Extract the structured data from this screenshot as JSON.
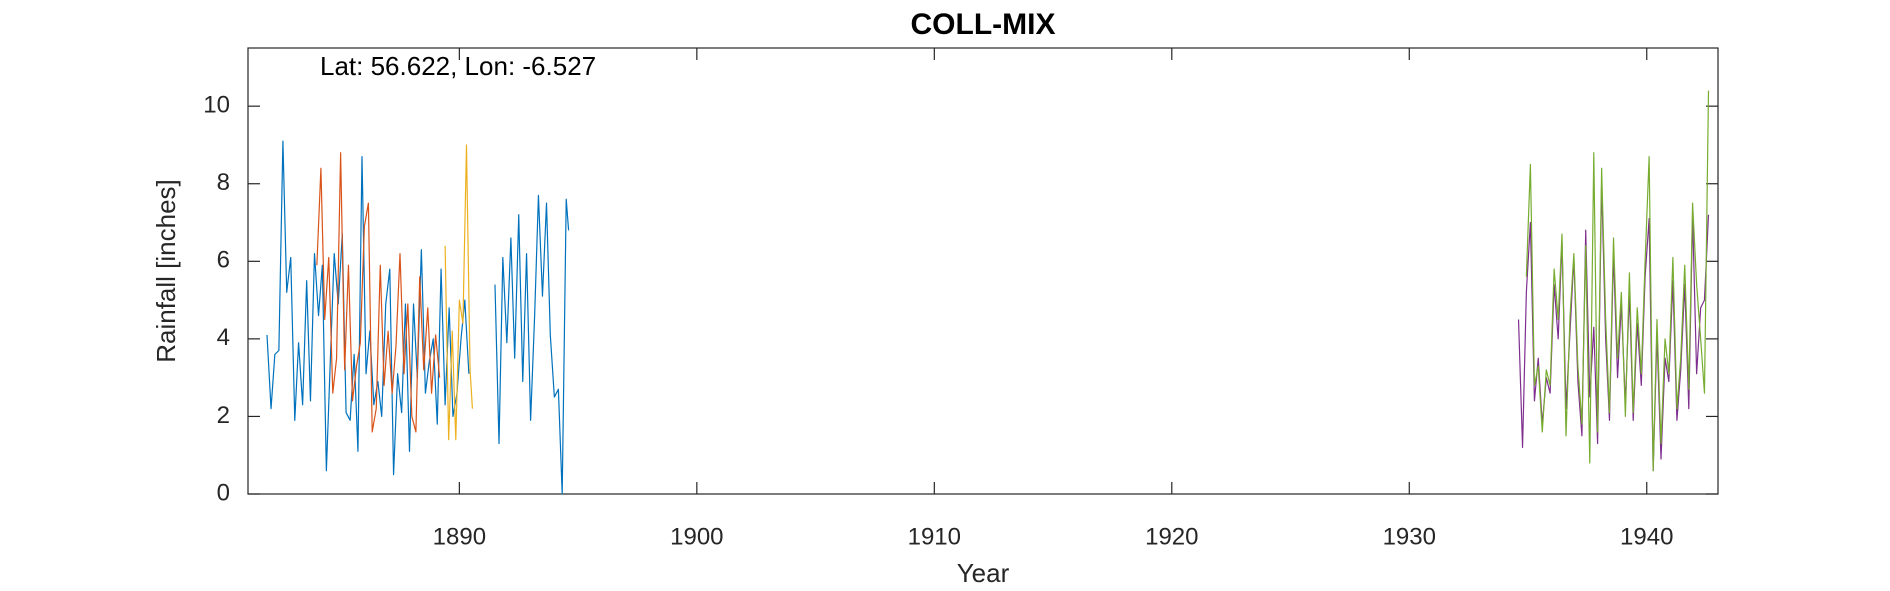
{
  "chart_data": {
    "type": "line",
    "title": "COLL-MIX",
    "annotation": "Lat: 56.622, Lon: -6.527",
    "xlabel": "Year",
    "ylabel": "Rainfall [inches]",
    "xlim": [
      1881.1,
      1943
    ],
    "xticks": [
      1890,
      1900,
      1910,
      1920,
      1930,
      1940
    ],
    "ylim": [
      0,
      11.5
    ],
    "yticks": [
      0,
      2,
      4,
      6,
      8,
      10
    ],
    "grid": false,
    "series": [
      {
        "color": "#0072bd",
        "x": [
          1881.9,
          1882.07,
          1882.23,
          1882.4,
          1882.57,
          1882.73,
          1882.9,
          1883.07,
          1883.23,
          1883.4,
          1883.57,
          1883.73,
          1883.9,
          1884.07,
          1884.23,
          1884.4,
          1884.57,
          1884.73,
          1884.9,
          1885.07,
          1885.23,
          1885.4,
          1885.57,
          1885.73,
          1885.9,
          1886.07,
          1886.23,
          1886.4,
          1886.57,
          1886.73,
          1886.9,
          1887.07,
          1887.23,
          1887.4,
          1887.57,
          1887.73,
          1887.9,
          1888.07,
          1888.23,
          1888.4,
          1888.57,
          1888.73,
          1888.9,
          1889.07,
          1889.23,
          1889.4,
          1889.57,
          1889.73,
          1889.9,
          1890.07,
          1890.23,
          1890.4,
          1891.0,
          1891.5,
          1891.67,
          1891.83,
          1892,
          1892.17,
          1892.33,
          1892.5,
          1892.67,
          1892.83,
          1893,
          1893.17,
          1893.33,
          1893.5,
          1893.67,
          1893.83,
          1894,
          1894.17,
          1894.33,
          1894.5,
          1894.6
        ],
        "values": [
          4.1,
          2.2,
          3.6,
          3.7,
          9.1,
          5.2,
          6.1,
          1.9,
          3.9,
          2.3,
          5.5,
          2.4,
          6.2,
          4.6,
          5.9,
          0.6,
          3.5,
          6.2,
          4.9,
          6.7,
          2.1,
          1.9,
          3.6,
          1.1,
          8.7,
          3.1,
          4.2,
          2.3,
          2.9,
          2.0,
          4.9,
          5.8,
          0.5,
          3.1,
          2.1,
          4.9,
          1.1,
          4.9,
          3.0,
          6.3,
          2.6,
          3.4,
          4.0,
          1.8,
          5.8,
          2.3,
          4.8,
          2.0,
          2.6,
          4.0,
          5.0,
          3.1,
          null,
          5.4,
          1.3,
          6.1,
          3.9,
          6.6,
          3.5,
          7.2,
          2.9,
          6.2,
          1.9,
          4.6,
          7.7,
          5.1,
          7.5,
          4.1,
          2.5,
          2.7,
          0.0,
          7.6,
          6.8
        ]
      },
      {
        "color": "#d95319",
        "x": [
          1884,
          1884.17,
          1884.33,
          1884.5,
          1884.67,
          1884.83,
          1885,
          1885.17,
          1885.33,
          1885.5,
          1885.67,
          1885.83,
          1886,
          1886.17,
          1886.33,
          1886.5,
          1886.67,
          1886.83,
          1887,
          1887.17,
          1887.33,
          1887.5,
          1887.67,
          1887.83,
          1888,
          1888.17,
          1888.33,
          1888.5,
          1888.67,
          1888.83,
          1889,
          1889.17
        ],
        "values": [
          5.9,
          8.4,
          4.5,
          6.1,
          2.6,
          3.5,
          8.8,
          3.2,
          5.9,
          2.4,
          3.3,
          3.9,
          6.9,
          7.5,
          1.6,
          2.2,
          5.9,
          2.8,
          4.2,
          2.6,
          3.8,
          6.2,
          3.1,
          4.9,
          2.0,
          1.6,
          5.6,
          3.2,
          4.8,
          2.6,
          4.1,
          3.0
        ]
      },
      {
        "color": "#edb120",
        "x": [
          1889.4,
          1889.55,
          1889.7,
          1889.85,
          1890,
          1890.15,
          1890.3,
          1890.45,
          1890.55
        ],
        "values": [
          6.4,
          1.4,
          4.2,
          1.4,
          5.0,
          4.4,
          9.0,
          3.2,
          2.2
        ]
      },
      {
        "color": "#7e2f8e",
        "x": [
          1934.6,
          1934.77,
          1934.93,
          1935.1,
          1935.27,
          1935.43,
          1935.6,
          1935.77,
          1935.93,
          1936.1,
          1936.27,
          1936.43,
          1936.6,
          1936.77,
          1936.93,
          1937.1,
          1937.27,
          1937.43,
          1937.6,
          1937.77,
          1937.93,
          1938.1,
          1938.27,
          1938.43,
          1938.6,
          1938.77,
          1938.93,
          1939.1,
          1939.27,
          1939.43,
          1939.6,
          1939.77,
          1939.93,
          1940.1,
          1940.27,
          1940.43,
          1940.6,
          1940.77,
          1940.93,
          1941.1,
          1941.27,
          1941.43,
          1941.6,
          1941.77,
          1941.93,
          1942.1,
          1942.27,
          1942.43,
          1942.6
        ],
        "values": [
          4.5,
          1.2,
          5.2,
          7.0,
          2.4,
          3.5,
          1.8,
          3.0,
          2.6,
          5.4,
          4.0,
          6.5,
          2.2,
          4.2,
          6.1,
          2.9,
          1.5,
          6.8,
          2.5,
          4.3,
          1.3,
          8.0,
          4.0,
          1.9,
          6.2,
          3.0,
          4.9,
          2.3,
          5.2,
          1.9,
          4.4,
          2.8,
          5.6,
          7.1,
          0.6,
          4.1,
          0.9,
          3.5,
          2.9,
          5.5,
          1.9,
          3.2,
          5.4,
          2.2,
          7.2,
          3.1,
          4.8,
          5.0,
          7.2
        ]
      },
      {
        "color": "#77ac30",
        "x": [
          1934.6,
          1934.77,
          1934.93,
          1935.1,
          1935.27,
          1935.43,
          1935.6,
          1935.77,
          1935.93,
          1936.1,
          1936.27,
          1936.43,
          1936.6,
          1936.77,
          1936.93,
          1937.1,
          1937.27,
          1937.43,
          1937.6,
          1937.77,
          1937.93,
          1938.1,
          1938.27,
          1938.43,
          1938.6,
          1938.77,
          1938.93,
          1939.1,
          1939.27,
          1939.43,
          1939.6,
          1939.77,
          1939.93,
          1940.1,
          1940.27,
          1940.43,
          1940.6,
          1940.77,
          1940.93,
          1941.1,
          1941.27,
          1941.43,
          1941.6,
          1941.77,
          1941.93,
          1942.1,
          1942.27,
          1942.43,
          1942.6
        ],
        "values": [
          null,
          null,
          5.6,
          8.5,
          2.8,
          3.3,
          1.6,
          3.2,
          2.8,
          5.8,
          4.5,
          6.7,
          1.5,
          4.6,
          6.2,
          3.3,
          1.8,
          6.4,
          0.8,
          8.8,
          1.6,
          8.4,
          4.5,
          2.1,
          6.6,
          3.5,
          5.2,
          2.0,
          5.7,
          2.1,
          4.8,
          3.1,
          6.0,
          8.7,
          0.6,
          4.5,
          1.3,
          4.0,
          3.1,
          6.1,
          2.2,
          3.5,
          5.9,
          2.7,
          7.5,
          5.4,
          4.0,
          2.6,
          10.4
        ]
      }
    ]
  }
}
